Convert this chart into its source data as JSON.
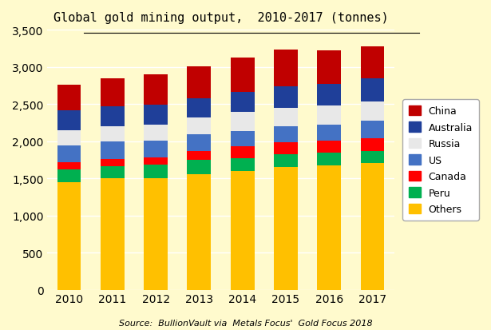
{
  "years": [
    2010,
    2011,
    2012,
    2013,
    2014,
    2015,
    2016,
    2017
  ],
  "series": {
    "Others": [
      1450,
      1500,
      1500,
      1560,
      1600,
      1650,
      1670,
      1700
    ],
    "Peru": [
      165,
      165,
      185,
      185,
      175,
      175,
      170,
      165
    ],
    "Canada": [
      100,
      95,
      95,
      120,
      155,
      155,
      170,
      175
    ],
    "US": [
      230,
      235,
      230,
      230,
      205,
      215,
      215,
      240
    ],
    "Russia": [
      200,
      205,
      215,
      220,
      255,
      252,
      255,
      255
    ],
    "Australia": [
      270,
      270,
      260,
      265,
      270,
      295,
      285,
      305
    ],
    "China": [
      345,
      370,
      410,
      430,
      465,
      490,
      455,
      430
    ]
  },
  "colors": {
    "Others": "#FFC000",
    "Peru": "#00B050",
    "Canada": "#FF0000",
    "US": "#4472C4",
    "Russia": "#E8E8E8",
    "Australia": "#1F3F99",
    "China": "#C00000"
  },
  "title": "Global gold mining output,  2010-2017 (tonnes)",
  "source": "Source:  BullionVault via  Metals Focus'  Gold Focus 2018",
  "ylim": [
    0,
    3500
  ],
  "yticks": [
    0,
    500,
    1000,
    1500,
    2000,
    2500,
    3000,
    3500
  ],
  "background_color": "#FFFACD",
  "legend_order": [
    "China",
    "Australia",
    "Russia",
    "US",
    "Canada",
    "Peru",
    "Others"
  ],
  "stack_order": [
    "Others",
    "Peru",
    "Canada",
    "US",
    "Russia",
    "Australia",
    "China"
  ]
}
